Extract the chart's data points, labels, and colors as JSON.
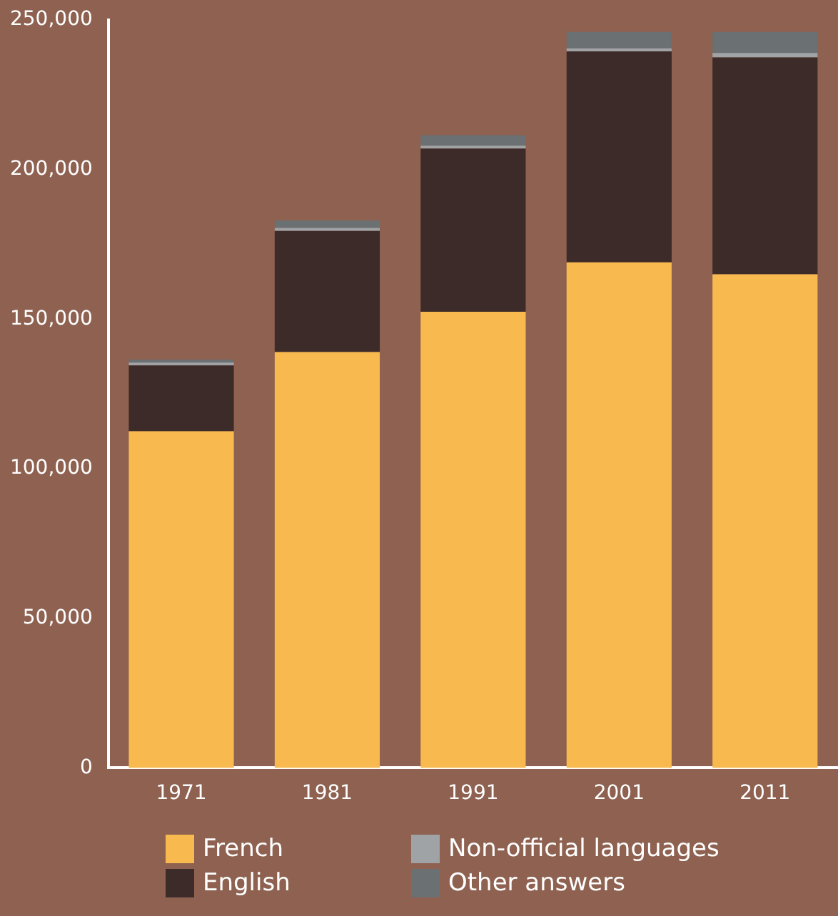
{
  "chart_data": {
    "type": "bar",
    "stacked": true,
    "categories": [
      "1971",
      "1981",
      "1991",
      "2001",
      "2011"
    ],
    "series": [
      {
        "name": "French",
        "color": "#f8b94f",
        "values": [
          112500,
          139000,
          152500,
          169000,
          165000
        ]
      },
      {
        "name": "English",
        "color": "#3d2b29",
        "values": [
          22000,
          40500,
          54500,
          70500,
          72500
        ]
      },
      {
        "name": "Non-official languages",
        "color": "#a0a3a5",
        "values": [
          1000,
          1000,
          1000,
          1000,
          1500
        ]
      },
      {
        "name": "Other answers",
        "color": "#6b7073",
        "values": [
          1000,
          2500,
          3500,
          5500,
          7000
        ]
      }
    ],
    "ylim": [
      0,
      250000
    ],
    "yticks": [
      {
        "value": 0,
        "label": "0"
      },
      {
        "value": 50000,
        "label": "50,000"
      },
      {
        "value": 100000,
        "label": "100,000"
      },
      {
        "value": 150000,
        "label": "150,000"
      },
      {
        "value": 200000,
        "label": "200,000"
      },
      {
        "value": 250000,
        "label": "250,000"
      }
    ],
    "grid": false,
    "legend": "bottom"
  }
}
